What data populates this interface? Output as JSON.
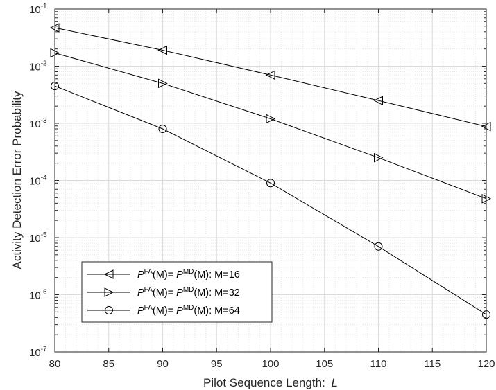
{
  "chart_data": {
    "type": "line",
    "xlabel": "Pilot Sequence Length:",
    "xlabel_var": "L",
    "ylabel": "Activity Detection Error Probability",
    "x_ticks": [
      "80",
      "85",
      "90",
      "95",
      "100",
      "105",
      "110",
      "115",
      "120"
    ],
    "y_ticks": [
      {
        "base": "10",
        "exp": "-1"
      },
      {
        "base": "10",
        "exp": "-2"
      },
      {
        "base": "10",
        "exp": "-3"
      },
      {
        "base": "10",
        "exp": "-4"
      },
      {
        "base": "10",
        "exp": "-5"
      },
      {
        "base": "10",
        "exp": "-6"
      },
      {
        "base": "10",
        "exp": "-7"
      }
    ],
    "xlim": [
      80,
      120
    ],
    "ylim": [
      1e-07,
      0.1
    ],
    "yscale": "log",
    "grid": true,
    "minor_grid": true,
    "legend_position": "lower-left",
    "x": [
      80,
      90,
      100,
      110,
      120
    ],
    "series": [
      {
        "name": "P^FA(M)= P^MD(M): M=16",
        "legend": {
          "p1": "P",
          "sup1": "FA",
          "mid": "(M)= ",
          "p2": "P",
          "sup2": "MD",
          "tail": "(M): M=16"
        },
        "marker": "triangle-left",
        "values": [
          0.047,
          0.019,
          0.007,
          0.0025,
          0.00088
        ]
      },
      {
        "name": "P^FA(M)= P^MD(M): M=32",
        "legend": {
          "p1": "P",
          "sup1": "FA",
          "mid": "(M)= ",
          "p2": "P",
          "sup2": "MD",
          "tail": "(M): M=32"
        },
        "marker": "triangle-right",
        "values": [
          0.017,
          0.005,
          0.0012,
          0.00025,
          4.8e-05
        ]
      },
      {
        "name": "P^FA(M)= P^MD(M): M=64",
        "legend": {
          "p1": "P",
          "sup1": "FA",
          "mid": "(M)= ",
          "p2": "P",
          "sup2": "MD",
          "tail": "(M): M=64"
        },
        "marker": "circle",
        "values": [
          0.0045,
          0.0008,
          9e-05,
          7e-06,
          4.5e-07
        ]
      }
    ],
    "colors": {
      "line": "#000000",
      "grid": "#e6e6e6",
      "axis": "#262626",
      "background": "#ffffff"
    }
  }
}
